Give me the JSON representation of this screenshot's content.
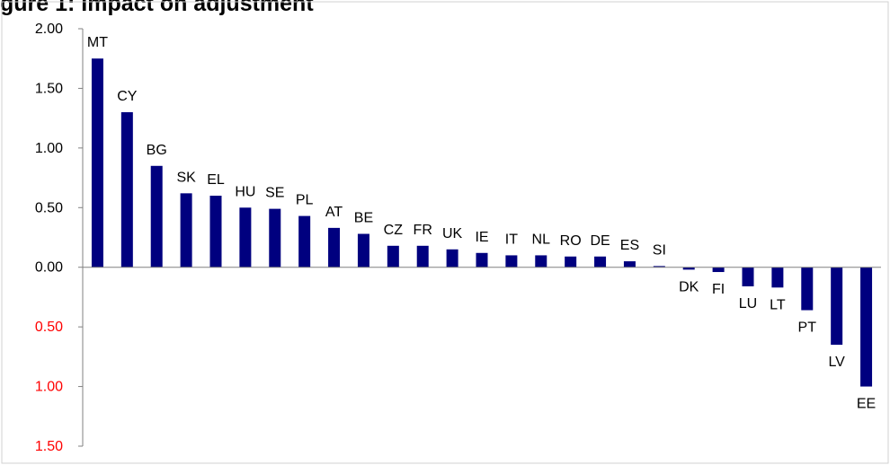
{
  "chart_data": {
    "type": "bar",
    "title": "gure 1: Impact on adjustment",
    "bar_color": "#00007f",
    "negative_tick_color": "#ff0000",
    "ylim": [
      -1.5,
      2.0
    ],
    "y_ticks": [
      {
        "value": 2.0,
        "label": "2.00"
      },
      {
        "value": 1.5,
        "label": "1.50"
      },
      {
        "value": 1.0,
        "label": "1.00"
      },
      {
        "value": 0.5,
        "label": "0.50"
      },
      {
        "value": 0.0,
        "label": "0.00"
      },
      {
        "value": -0.5,
        "label": "0.50"
      },
      {
        "value": -1.0,
        "label": "1.00"
      },
      {
        "value": -1.5,
        "label": "1.50"
      }
    ],
    "categories": [
      "MT",
      "CY",
      "BG",
      "SK",
      "EL",
      "HU",
      "SE",
      "PL",
      "AT",
      "BE",
      "CZ",
      "FR",
      "UK",
      "IE",
      "IT",
      "NL",
      "RO",
      "DE",
      "ES",
      "SI",
      "DK",
      "FI",
      "LU",
      "LT",
      "PT",
      "LV",
      "EE"
    ],
    "values": [
      1.75,
      1.3,
      0.85,
      0.62,
      0.6,
      0.5,
      0.49,
      0.43,
      0.33,
      0.28,
      0.18,
      0.18,
      0.15,
      0.12,
      0.1,
      0.1,
      0.09,
      0.09,
      0.05,
      0.01,
      -0.02,
      -0.04,
      -0.16,
      -0.17,
      -0.36,
      -0.65,
      -1.0
    ]
  }
}
